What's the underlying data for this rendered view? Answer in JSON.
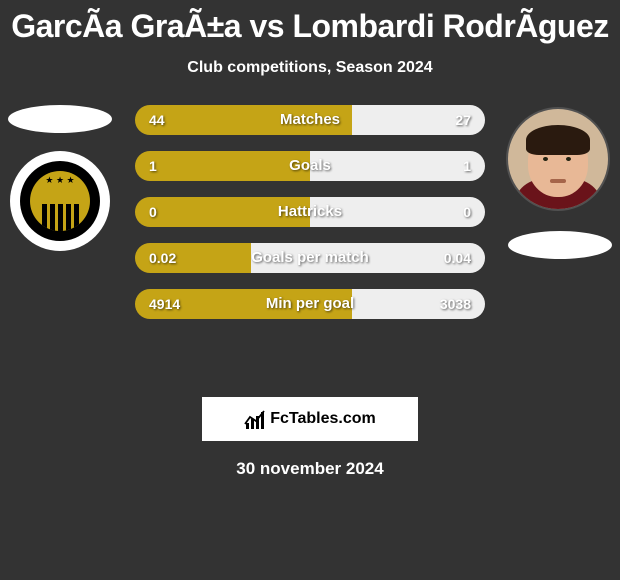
{
  "title": "GarcÃ­a GraÃ±a vs Lombardi RodrÃ­guez",
  "subtitle": "Club competitions, Season 2024",
  "colors": {
    "bg": "#333333",
    "left_bar": "#c5a416",
    "right_bar": "#eeeeee",
    "text": "#ffffff"
  },
  "rows": [
    {
      "label": "Matches",
      "left_val": "44",
      "right_val": "27",
      "left_pct": 62,
      "right_pct": 38
    },
    {
      "label": "Goals",
      "left_val": "1",
      "right_val": "1",
      "left_pct": 50,
      "right_pct": 50
    },
    {
      "label": "Hattricks",
      "left_val": "0",
      "right_val": "0",
      "left_pct": 50,
      "right_pct": 50
    },
    {
      "label": "Goals per match",
      "left_val": "0.02",
      "right_val": "0.04",
      "left_pct": 33,
      "right_pct": 67
    },
    {
      "label": "Min per goal",
      "left_val": "4914",
      "right_val": "3038",
      "left_pct": 62,
      "right_pct": 38
    }
  ],
  "logo": "FcTables.com",
  "date": "30 november 2024"
}
